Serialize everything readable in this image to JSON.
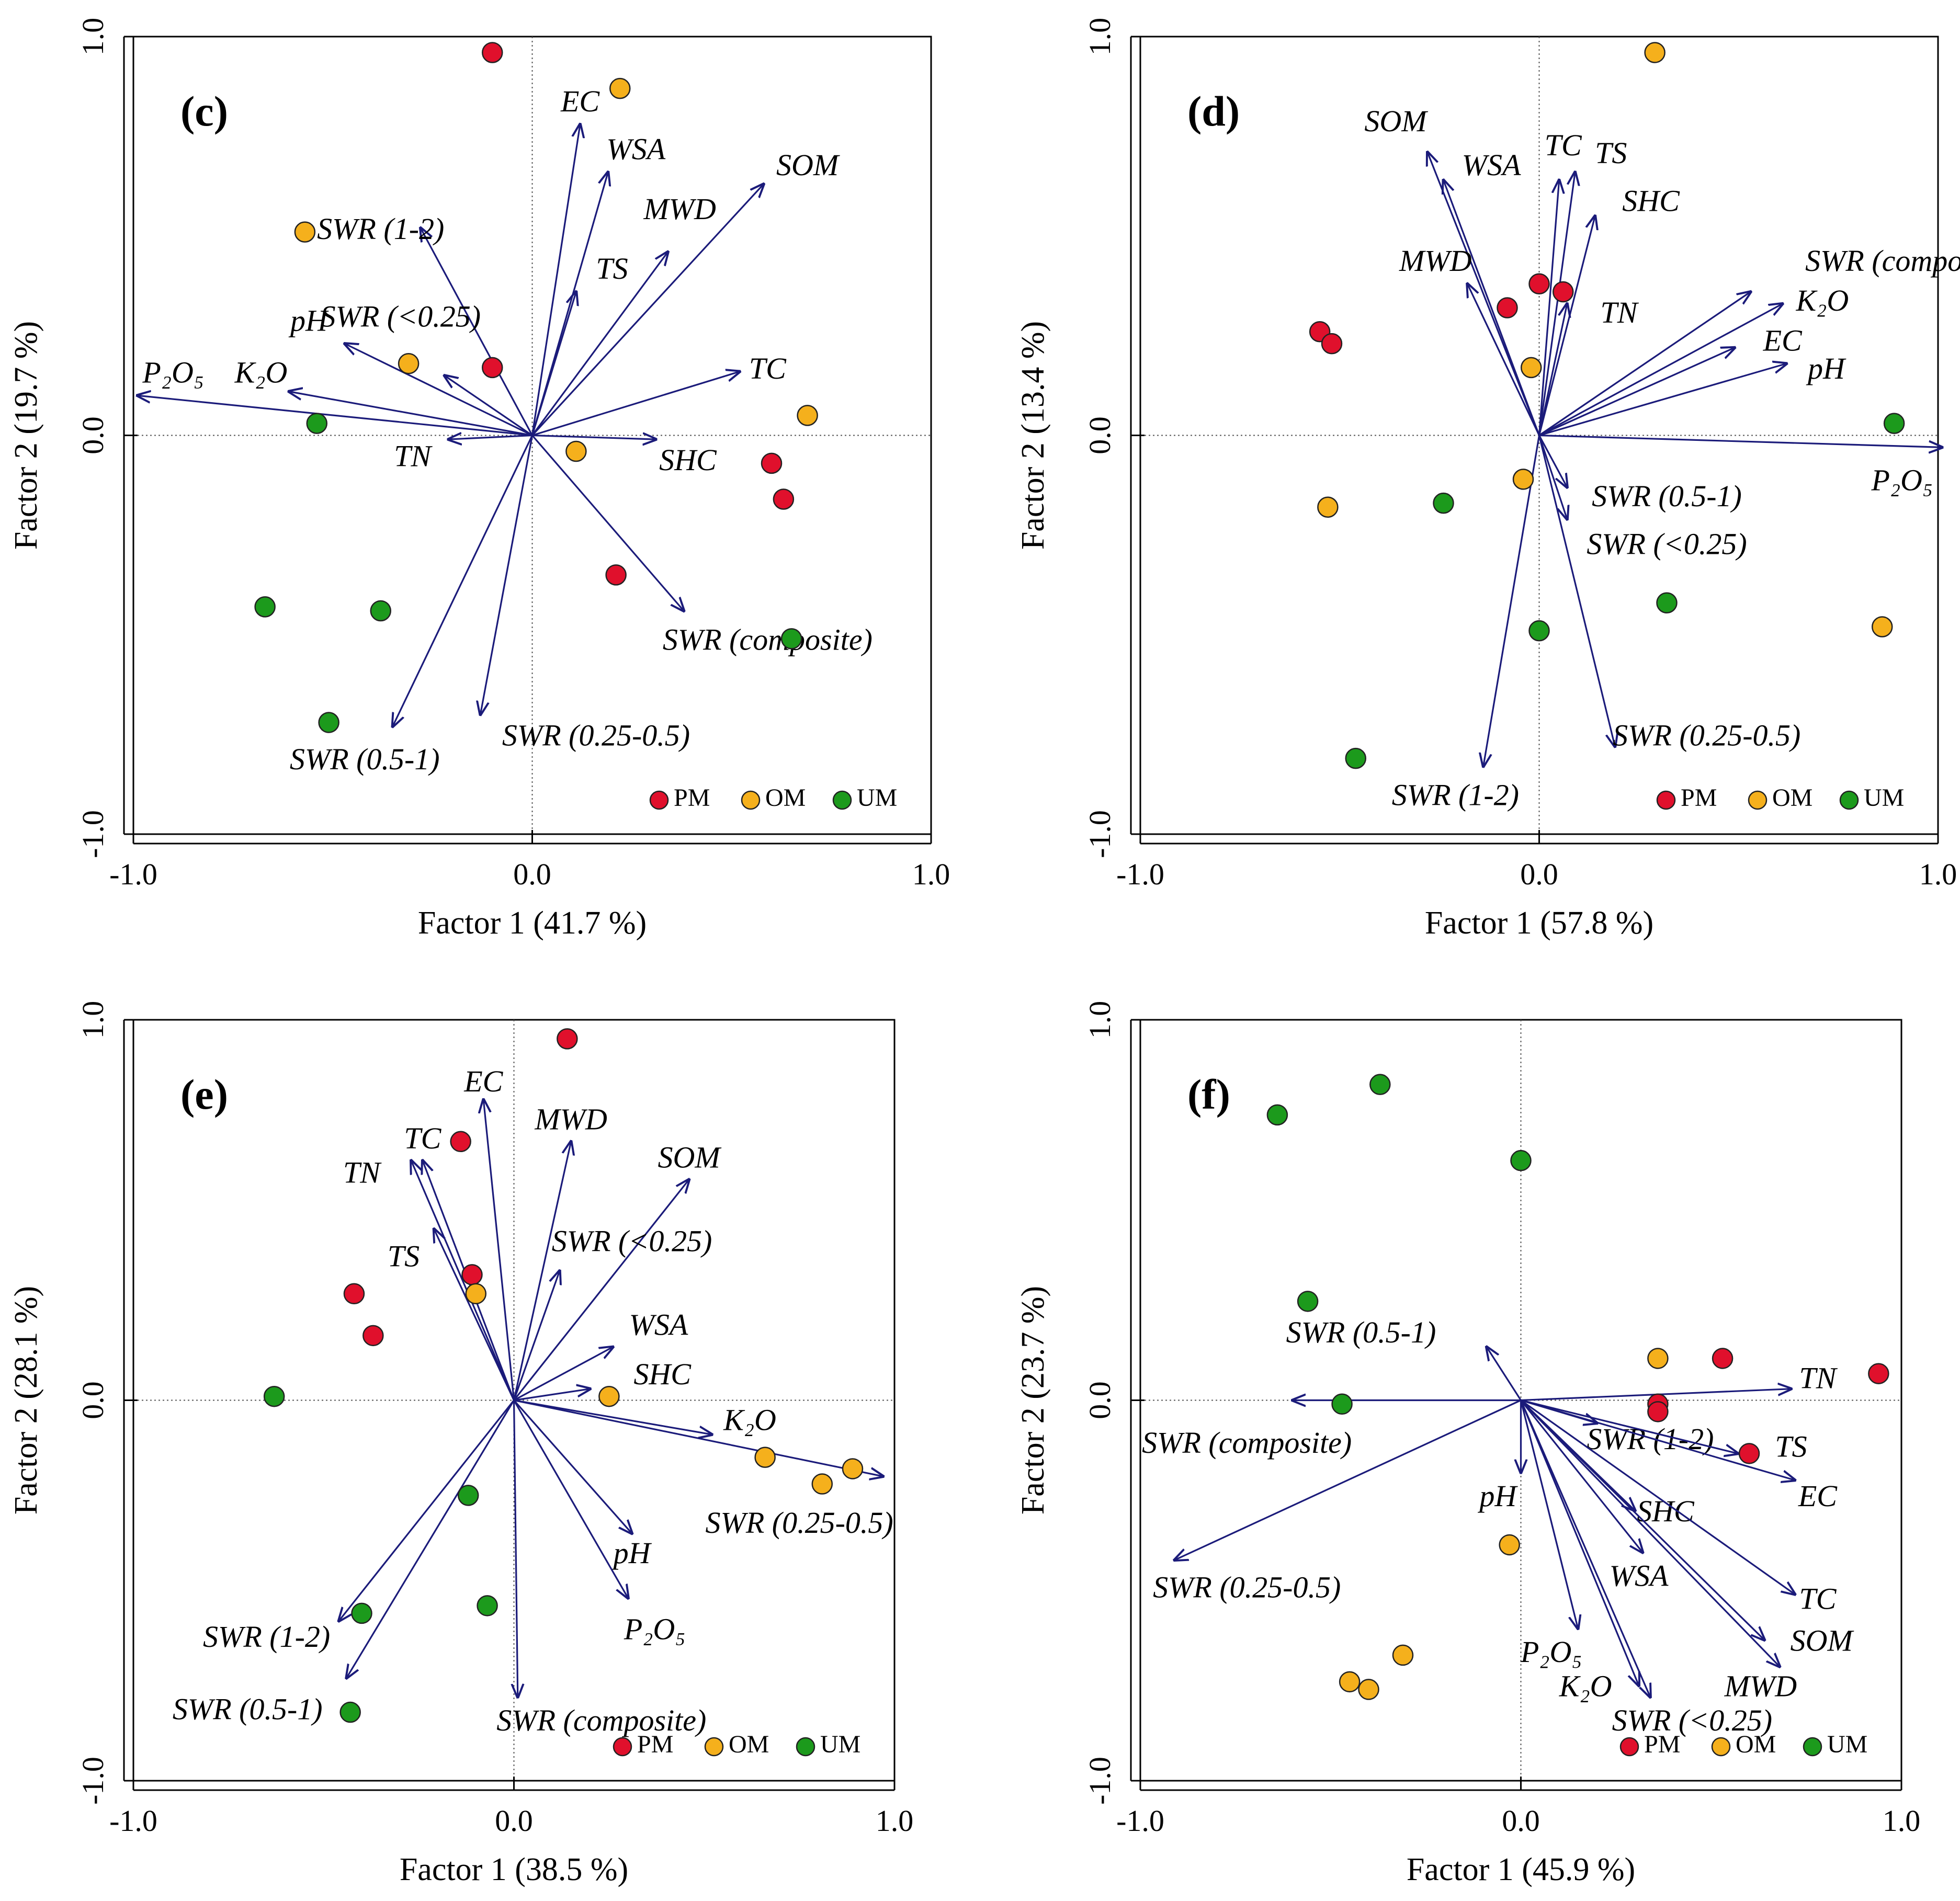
{
  "colors": {
    "arrow": "#1b1b7a",
    "PM": "#e0102c",
    "OM": "#f5b01c",
    "UM": "#1c9a1c",
    "marker_edge": "#222222",
    "frame": "#000000",
    "zero_line": "#555555"
  },
  "chart_data": [
    {
      "type": "scatter",
      "panel_label": "(c)",
      "xlabel": "Factor 1 (41.7 %)",
      "ylabel": "Factor 2 (19.7 %)",
      "xlim": [
        -1.0,
        1.0
      ],
      "ylim": [
        -1.0,
        1.0
      ],
      "xticks": [
        "-1.0",
        "0.0",
        "1.0"
      ],
      "yticks": [
        "-1.0",
        "0.0",
        "1.0"
      ],
      "legend": [
        {
          "name": "PM"
        },
        {
          "name": "OM"
        },
        {
          "name": "UM"
        }
      ],
      "legend_position": "bottom-right",
      "vectors": [
        {
          "label": "EC",
          "x": 0.12,
          "y": 0.78,
          "lx": 0.12,
          "ly": 0.83
        },
        {
          "label": "WSA",
          "x": 0.19,
          "y": 0.66,
          "lx": 0.26,
          "ly": 0.71
        },
        {
          "label": "SOM",
          "x": 0.58,
          "y": 0.63,
          "lx": 0.69,
          "ly": 0.67
        },
        {
          "label": "MWD",
          "x": 0.34,
          "y": 0.46,
          "lx": 0.37,
          "ly": 0.56
        },
        {
          "label": "TS",
          "x": 0.11,
          "y": 0.36,
          "lx": 0.2,
          "ly": 0.41
        },
        {
          "label": "SWR (1-2)",
          "x": -0.28,
          "y": 0.52,
          "lx": -0.38,
          "ly": 0.51
        },
        {
          "label": "SWR (<0.25)",
          "x": -0.22,
          "y": 0.15,
          "lx": -0.33,
          "ly": 0.29
        },
        {
          "label": "pH",
          "x": -0.47,
          "y": 0.23,
          "lx": -0.56,
          "ly": 0.28
        },
        {
          "label": "P₂O₅",
          "x": -0.99,
          "y": 0.1,
          "lx": -0.9,
          "ly": 0.15
        },
        {
          "label": "K₂O",
          "x": -0.61,
          "y": 0.11,
          "lx": -0.68,
          "ly": 0.15
        },
        {
          "label": "TC",
          "x": 0.52,
          "y": 0.16,
          "lx": 0.59,
          "ly": 0.16
        },
        {
          "label": "SHC",
          "x": 0.31,
          "y": -0.01,
          "lx": 0.39,
          "ly": -0.07
        },
        {
          "label": "TN",
          "x": -0.21,
          "y": -0.01,
          "lx": -0.3,
          "ly": -0.06
        },
        {
          "label": "SWR (composite)",
          "x": 0.38,
          "y": -0.44,
          "lx": 0.59,
          "ly": -0.52
        },
        {
          "label": "SWR (0.25-0.5)",
          "x": -0.13,
          "y": -0.7,
          "lx": 0.16,
          "ly": -0.76
        },
        {
          "label": "SWR (0.5-1)",
          "x": -0.35,
          "y": -0.73,
          "lx": -0.42,
          "ly": -0.82
        }
      ],
      "points": [
        {
          "group": "PM",
          "x": -0.1,
          "y": 0.96
        },
        {
          "group": "PM",
          "x": -0.1,
          "y": 0.17
        },
        {
          "group": "PM",
          "x": 0.6,
          "y": -0.07
        },
        {
          "group": "PM",
          "x": 0.63,
          "y": -0.16
        },
        {
          "group": "PM",
          "x": 0.21,
          "y": -0.35
        },
        {
          "group": "OM",
          "x": 0.22,
          "y": 0.87
        },
        {
          "group": "OM",
          "x": -0.57,
          "y": 0.51
        },
        {
          "group": "OM",
          "x": -0.31,
          "y": 0.18
        },
        {
          "group": "OM",
          "x": 0.69,
          "y": 0.05
        },
        {
          "group": "OM",
          "x": 0.11,
          "y": -0.04
        },
        {
          "group": "UM",
          "x": -0.54,
          "y": 0.03
        },
        {
          "group": "UM",
          "x": -0.67,
          "y": -0.43
        },
        {
          "group": "UM",
          "x": -0.38,
          "y": -0.44
        },
        {
          "group": "UM",
          "x": 0.65,
          "y": -0.51
        },
        {
          "group": "UM",
          "x": -0.51,
          "y": -0.72
        }
      ]
    },
    {
      "type": "scatter",
      "panel_label": "(d)",
      "xlabel": "Factor 1 (57.8 %)",
      "ylabel": "Factor 2 (13.4 %)",
      "xlim": [
        -1.0,
        1.0
      ],
      "ylim": [
        -1.0,
        1.0
      ],
      "xticks": [
        "-1.0",
        "0.0",
        "1.0"
      ],
      "yticks": [
        "-1.0",
        "0.0",
        "1.0"
      ],
      "legend": [
        {
          "name": "PM"
        },
        {
          "name": "OM"
        },
        {
          "name": "UM"
        }
      ],
      "legend_position": "bottom-right",
      "vectors": [
        {
          "label": "SOM",
          "x": -0.28,
          "y": 0.71,
          "lx": -0.36,
          "ly": 0.78
        },
        {
          "label": "WSA",
          "x": -0.24,
          "y": 0.64,
          "lx": -0.12,
          "ly": 0.67
        },
        {
          "label": "TC",
          "x": 0.05,
          "y": 0.64,
          "lx": 0.06,
          "ly": 0.72
        },
        {
          "label": "TS",
          "x": 0.09,
          "y": 0.66,
          "lx": 0.18,
          "ly": 0.7
        },
        {
          "label": "SHC",
          "x": 0.14,
          "y": 0.55,
          "lx": 0.28,
          "ly": 0.58
        },
        {
          "label": "MWD",
          "x": -0.18,
          "y": 0.38,
          "lx": -0.26,
          "ly": 0.43
        },
        {
          "label": "TN",
          "x": 0.07,
          "y": 0.33,
          "lx": 0.2,
          "ly": 0.3
        },
        {
          "label": "SWR (composite)",
          "x": 0.53,
          "y": 0.36,
          "lx": 0.93,
          "ly": 0.43
        },
        {
          "label": "K₂O",
          "x": 0.61,
          "y": 0.33,
          "lx": 0.71,
          "ly": 0.33
        },
        {
          "label": "EC",
          "x": 0.49,
          "y": 0.22,
          "lx": 0.61,
          "ly": 0.23
        },
        {
          "label": "pH",
          "x": 0.62,
          "y": 0.18,
          "lx": 0.72,
          "ly": 0.16
        },
        {
          "label": "P₂O₅",
          "x": 1.01,
          "y": -0.03,
          "lx": 0.91,
          "ly": -0.12
        },
        {
          "label": "SWR (0.5-1)",
          "x": 0.07,
          "y": -0.13,
          "lx": 0.32,
          "ly": -0.16
        },
        {
          "label": "SWR (<0.25)",
          "x": 0.07,
          "y": -0.21,
          "lx": 0.32,
          "ly": -0.28
        },
        {
          "label": "SWR (0.25-0.5)",
          "x": 0.19,
          "y": -0.78,
          "lx": 0.42,
          "ly": -0.76
        },
        {
          "label": "SWR (1-2)",
          "x": -0.14,
          "y": -0.83,
          "lx": -0.21,
          "ly": -0.91
        }
      ],
      "points": [
        {
          "group": "PM",
          "x": 0.0,
          "y": 0.38
        },
        {
          "group": "PM",
          "x": 0.06,
          "y": 0.36
        },
        {
          "group": "PM",
          "x": -0.08,
          "y": 0.32
        },
        {
          "group": "PM",
          "x": -0.55,
          "y": 0.26
        },
        {
          "group": "PM",
          "x": -0.52,
          "y": 0.23
        },
        {
          "group": "OM",
          "x": 0.29,
          "y": 0.96
        },
        {
          "group": "OM",
          "x": -0.02,
          "y": 0.17
        },
        {
          "group": "OM",
          "x": -0.04,
          "y": -0.11
        },
        {
          "group": "OM",
          "x": -0.53,
          "y": -0.18
        },
        {
          "group": "OM",
          "x": 0.86,
          "y": -0.48
        },
        {
          "group": "UM",
          "x": 0.89,
          "y": 0.03
        },
        {
          "group": "UM",
          "x": -0.24,
          "y": -0.17
        },
        {
          "group": "UM",
          "x": 0.32,
          "y": -0.42
        },
        {
          "group": "UM",
          "x": 0.0,
          "y": -0.49
        },
        {
          "group": "UM",
          "x": -0.46,
          "y": -0.81
        }
      ]
    },
    {
      "type": "scatter",
      "panel_label": "(e)",
      "xlabel": "Factor 1 (38.5 %)",
      "ylabel": "Factor 2 (28.1 %)",
      "xlim": [
        -1.0,
        1.0
      ],
      "ylim": [
        -1.0,
        1.0
      ],
      "xticks": [
        "-1.0",
        "0.0",
        "1.0"
      ],
      "yticks": [
        "-1.0",
        "0.0",
        "1.0"
      ],
      "legend": [
        {
          "name": "PM"
        },
        {
          "name": "OM"
        },
        {
          "name": "UM"
        }
      ],
      "legend_position": "bottom-right",
      "vectors": [
        {
          "label": "EC",
          "x": -0.08,
          "y": 0.79,
          "lx": -0.08,
          "ly": 0.83
        },
        {
          "label": "MWD",
          "x": 0.15,
          "y": 0.68,
          "lx": 0.15,
          "ly": 0.73
        },
        {
          "label": "SOM",
          "x": 0.46,
          "y": 0.58,
          "lx": 0.46,
          "ly": 0.63
        },
        {
          "label": "TC",
          "x": -0.24,
          "y": 0.63,
          "lx": -0.24,
          "ly": 0.68
        },
        {
          "label": "TN",
          "x": -0.27,
          "y": 0.63,
          "lx": -0.4,
          "ly": 0.59
        },
        {
          "label": "TS",
          "x": -0.21,
          "y": 0.45,
          "lx": -0.29,
          "ly": 0.37
        },
        {
          "label": "SWR (<0.25)",
          "x": 0.12,
          "y": 0.34,
          "lx": 0.31,
          "ly": 0.41
        },
        {
          "label": "WSA",
          "x": 0.26,
          "y": 0.14,
          "lx": 0.38,
          "ly": 0.19
        },
        {
          "label": "SHC",
          "x": 0.2,
          "y": 0.03,
          "lx": 0.39,
          "ly": 0.06
        },
        {
          "label": "K₂O",
          "x": 0.52,
          "y": -0.09,
          "lx": 0.62,
          "ly": -0.06
        },
        {
          "label": "SWR (0.25-0.5)",
          "x": 0.97,
          "y": -0.2,
          "lx": 0.75,
          "ly": -0.33
        },
        {
          "label": "pH",
          "x": 0.31,
          "y": -0.35,
          "lx": 0.31,
          "ly": -0.41
        },
        {
          "label": "P₂O₅",
          "x": 0.3,
          "y": -0.52,
          "lx": 0.37,
          "ly": -0.61
        },
        {
          "label": "SWR (composite)",
          "x": 0.01,
          "y": -0.78,
          "lx": 0.23,
          "ly": -0.85
        },
        {
          "label": "SWR (1-2)",
          "x": -0.46,
          "y": -0.58,
          "lx": -0.65,
          "ly": -0.63
        },
        {
          "label": "SWR (0.5-1)",
          "x": -0.44,
          "y": -0.73,
          "lx": -0.7,
          "ly": -0.82
        }
      ],
      "points": [
        {
          "group": "PM",
          "x": 0.14,
          "y": 0.95
        },
        {
          "group": "PM",
          "x": -0.14,
          "y": 0.68
        },
        {
          "group": "PM",
          "x": -0.11,
          "y": 0.33
        },
        {
          "group": "PM",
          "x": -0.42,
          "y": 0.28
        },
        {
          "group": "PM",
          "x": -0.37,
          "y": 0.17
        },
        {
          "group": "OM",
          "x": -0.1,
          "y": 0.28
        },
        {
          "group": "OM",
          "x": 0.25,
          "y": 0.01
        },
        {
          "group": "OM",
          "x": 0.66,
          "y": -0.15
        },
        {
          "group": "OM",
          "x": 0.89,
          "y": -0.18
        },
        {
          "group": "OM",
          "x": 0.81,
          "y": -0.22
        },
        {
          "group": "UM",
          "x": -0.63,
          "y": 0.01
        },
        {
          "group": "UM",
          "x": -0.12,
          "y": -0.25
        },
        {
          "group": "UM",
          "x": -0.4,
          "y": -0.56
        },
        {
          "group": "UM",
          "x": -0.07,
          "y": -0.54
        },
        {
          "group": "UM",
          "x": -0.43,
          "y": -0.82
        }
      ]
    },
    {
      "type": "scatter",
      "panel_label": "(f)",
      "xlabel": "Factor 1 (45.9 %)",
      "ylabel": "Factor 2 (23.7 %)",
      "xlim": [
        -1.0,
        1.0
      ],
      "ylim": [
        -1.0,
        1.0
      ],
      "xticks": [
        "-1.0",
        "0.0",
        "1.0"
      ],
      "yticks": [
        "-1.0",
        "0.0",
        "1.0"
      ],
      "legend": [
        {
          "name": "PM"
        },
        {
          "name": "OM"
        },
        {
          "name": "UM"
        }
      ],
      "legend_position": "bottom-right",
      "vectors": [
        {
          "label": "SWR (0.5-1)",
          "x": -0.09,
          "y": 0.14,
          "lx": -0.42,
          "ly": 0.17
        },
        {
          "label": "SWR (composite)",
          "x": -0.6,
          "y": 0.0,
          "lx": -0.72,
          "ly": -0.12
        },
        {
          "label": "SWR (0.25-0.5)",
          "x": -0.91,
          "y": -0.42,
          "lx": -0.72,
          "ly": -0.5
        },
        {
          "label": "TN",
          "x": 0.71,
          "y": 0.03,
          "lx": 0.78,
          "ly": 0.05
        },
        {
          "label": "SWR (1-2)",
          "x": 0.2,
          "y": -0.06,
          "lx": 0.34,
          "ly": -0.11
        },
        {
          "label": "TS",
          "x": 0.57,
          "y": -0.14,
          "lx": 0.71,
          "ly": -0.13
        },
        {
          "label": "EC",
          "x": 0.72,
          "y": -0.21,
          "lx": 0.78,
          "ly": -0.26
        },
        {
          "label": "pH",
          "x": 0.0,
          "y": -0.19,
          "lx": -0.06,
          "ly": -0.26
        },
        {
          "label": "SHC",
          "x": 0.3,
          "y": -0.29,
          "lx": 0.38,
          "ly": -0.3
        },
        {
          "label": "WSA",
          "x": 0.32,
          "y": -0.4,
          "lx": 0.31,
          "ly": -0.47
        },
        {
          "label": "TC",
          "x": 0.72,
          "y": -0.51,
          "lx": 0.78,
          "ly": -0.53
        },
        {
          "label": "SOM",
          "x": 0.68,
          "y": -0.7,
          "lx": 0.79,
          "ly": -0.64
        },
        {
          "label": "MWD",
          "x": 0.64,
          "y": -0.63,
          "lx": 0.63,
          "ly": -0.76
        },
        {
          "label": "P₂O₅",
          "x": 0.15,
          "y": -0.6,
          "lx": 0.08,
          "ly": -0.67
        },
        {
          "label": "K₂O",
          "x": 0.31,
          "y": -0.75,
          "lx": 0.17,
          "ly": -0.76
        },
        {
          "label": "SWR (<0.25)",
          "x": 0.34,
          "y": -0.78,
          "lx": 0.45,
          "ly": -0.85
        }
      ],
      "points": [
        {
          "group": "PM",
          "x": 0.94,
          "y": 0.07
        },
        {
          "group": "PM",
          "x": 0.53,
          "y": 0.11
        },
        {
          "group": "PM",
          "x": 0.36,
          "y": -0.01
        },
        {
          "group": "PM",
          "x": 0.36,
          "y": -0.03
        },
        {
          "group": "PM",
          "x": 0.6,
          "y": -0.14
        },
        {
          "group": "OM",
          "x": 0.36,
          "y": 0.11
        },
        {
          "group": "OM",
          "x": -0.03,
          "y": -0.38
        },
        {
          "group": "OM",
          "x": -0.31,
          "y": -0.67
        },
        {
          "group": "OM",
          "x": -0.45,
          "y": -0.74
        },
        {
          "group": "OM",
          "x": -0.4,
          "y": -0.76
        },
        {
          "group": "UM",
          "x": -0.37,
          "y": 0.83
        },
        {
          "group": "UM",
          "x": -0.64,
          "y": 0.75
        },
        {
          "group": "UM",
          "x": 0.0,
          "y": 0.63
        },
        {
          "group": "UM",
          "x": -0.56,
          "y": 0.26
        },
        {
          "group": "UM",
          "x": -0.47,
          "y": -0.01
        }
      ]
    }
  ]
}
